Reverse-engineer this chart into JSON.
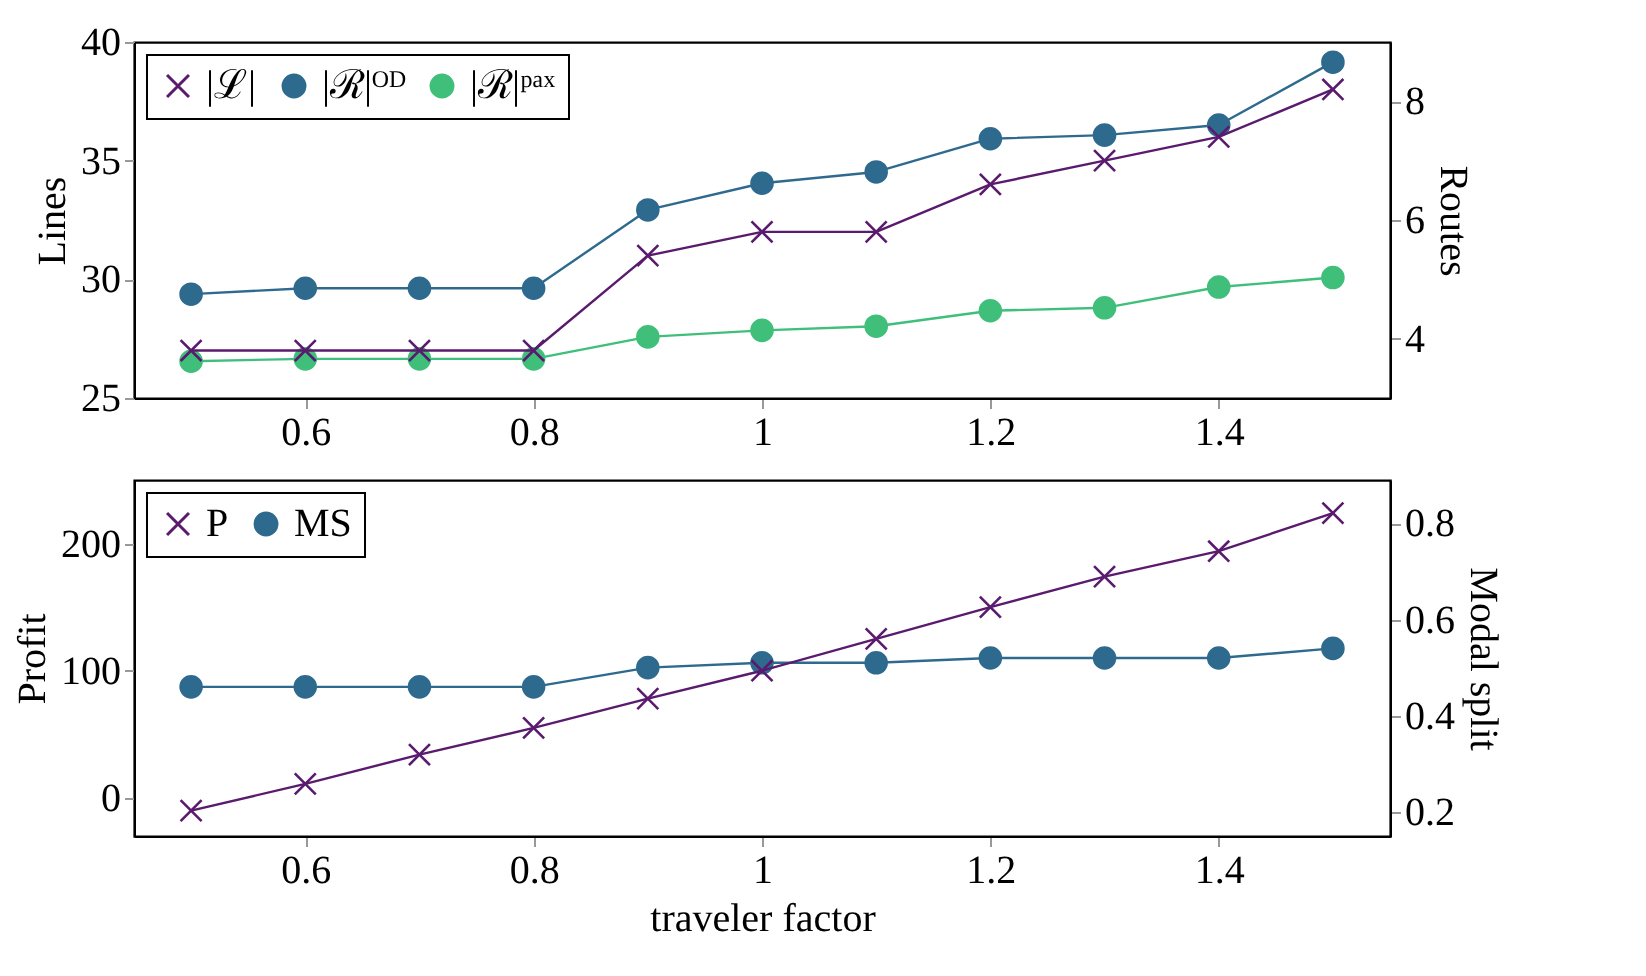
{
  "chart_data": [
    {
      "type": "line",
      "ylabel": "Lines",
      "y2label": "Routes",
      "x": [
        0.5,
        0.6,
        0.7,
        0.8,
        0.9,
        1.0,
        1.1,
        1.2,
        1.3,
        1.4,
        1.5
      ],
      "series": [
        {
          "name": "|ℒ|",
          "color": "#5a1a6e",
          "marker": "cross",
          "values": [
            27,
            27,
            27,
            27,
            31,
            32,
            32,
            34,
            35,
            36,
            38
          ]
        },
        {
          "name": "|ℛ|ᴼᴰ",
          "color": "#2e6a8e",
          "marker": "circle",
          "axis": "y2",
          "values": [
            4.75,
            4.85,
            4.85,
            4.85,
            6.17,
            6.62,
            6.81,
            7.37,
            7.43,
            7.6,
            8.66
          ]
        },
        {
          "name": "|ℛ|ᵖᵃˣ",
          "color": "#3fbf7a",
          "marker": "circle",
          "axis": "y2",
          "values": [
            3.62,
            3.66,
            3.66,
            3.66,
            4.03,
            4.14,
            4.21,
            4.47,
            4.52,
            4.87,
            5.03
          ]
        }
      ],
      "xlim": [
        0.45,
        1.55
      ],
      "xticks": [
        0.6,
        0.8,
        1,
        1.2,
        1.4
      ],
      "ylim": [
        25,
        40
      ],
      "yticks": [
        25,
        30,
        35,
        40
      ],
      "y2lim": [
        3,
        9
      ],
      "y2ticks": [
        4,
        6,
        8
      ],
      "legend": "top left",
      "line_style": "solid",
      "grid": false
    },
    {
      "type": "line",
      "xlabel": "traveler factor",
      "ylabel": "Profit",
      "y2label": "Modal split",
      "x": [
        0.5,
        0.6,
        0.7,
        0.8,
        0.9,
        1.0,
        1.1,
        1.2,
        1.3,
        1.4,
        1.5
      ],
      "series": [
        {
          "name": "P",
          "color": "#5a1a6e",
          "marker": "cross",
          "values": [
            -10,
            11,
            34,
            55,
            78,
            100,
            125,
            150,
            174,
            194,
            224
          ]
        },
        {
          "name": "MS",
          "color": "#2e6a8e",
          "marker": "circle",
          "axis": "y2",
          "values": [
            0.46,
            0.46,
            0.46,
            0.46,
            0.5,
            0.51,
            0.51,
            0.52,
            0.52,
            0.52,
            0.54
          ]
        }
      ],
      "xlim": [
        0.45,
        1.55
      ],
      "xticks": [
        0.6,
        0.8,
        1,
        1.2,
        1.4
      ],
      "ylim": [
        -30,
        250
      ],
      "yticks": [
        0,
        100,
        200
      ],
      "y2lim": [
        0.15,
        0.89
      ],
      "y2ticks": [
        0.2,
        0.4,
        0.6,
        0.8
      ],
      "legend": "top left",
      "line_style": "solid",
      "grid": false
    }
  ]
}
